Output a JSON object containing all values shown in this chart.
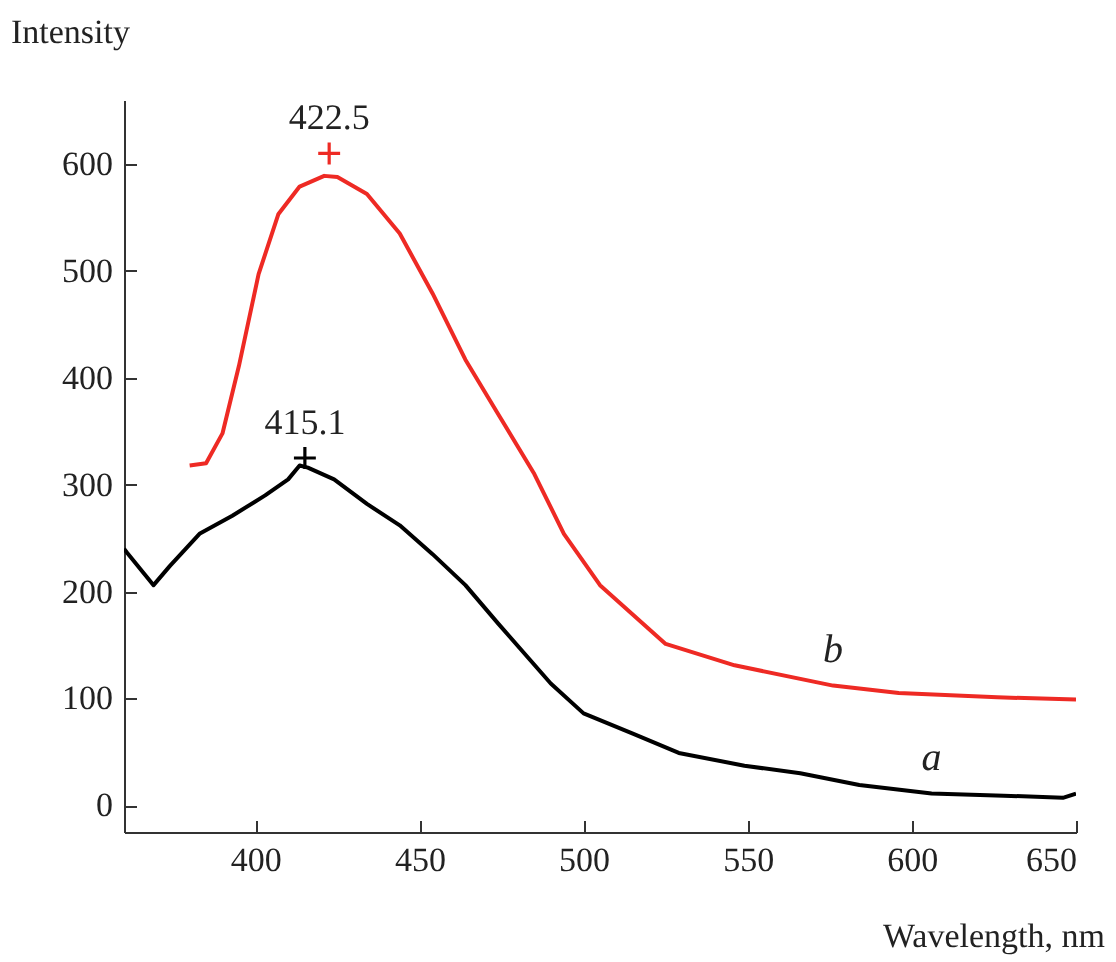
{
  "chart_data": {
    "type": "line",
    "xlabel": "Wavelength, nm",
    "ylabel": "Intensity",
    "xlim": [
      360,
      650
    ],
    "xticks": [
      400,
      450,
      500,
      550,
      600,
      650
    ],
    "ylim": [
      -25,
      660
    ],
    "yticks": [
      0,
      100,
      200,
      300,
      400,
      500,
      600
    ],
    "grid": false,
    "line_style": "solid",
    "series": [
      {
        "name": "a",
        "color": "#000000",
        "x": [
          360,
          361,
          369,
          374,
          383,
          393,
          403,
          410,
          413.5,
          416,
          424,
          434,
          444,
          454,
          464,
          474,
          490,
          500,
          515,
          529,
          549,
          566,
          584,
          606,
          628,
          646,
          650
        ],
        "values": [
          240,
          236,
          206,
          224,
          254,
          271,
          290,
          305,
          318,
          316,
          305,
          282,
          262,
          235,
          206,
          170,
          114,
          86,
          67,
          49,
          37,
          30,
          19,
          11,
          9,
          7,
          11
        ]
      },
      {
        "name": "b",
        "color": "#ee2a24",
        "x": [
          380,
          385,
          390,
          395,
          401,
          407,
          413.5,
          421,
          425,
          434,
          444,
          454,
          464,
          474,
          485,
          494,
          505,
          525,
          546,
          576,
          596,
          626,
          650
        ],
        "values": [
          318,
          320,
          348,
          411,
          497,
          553,
          579,
          589,
          588,
          572,
          535,
          479,
          417,
          366,
          310,
          254,
          206,
          151,
          131,
          112,
          105,
          101,
          99
        ]
      },
      {
        "type": "scatter",
        "marker": "cross",
        "color": "#000000",
        "x": [
          415.1
        ],
        "values": [
          325
        ]
      },
      {
        "type": "scatter",
        "marker": "cross",
        "color": "#ee2a24",
        "x": [
          422.5
        ],
        "values": [
          610
        ]
      }
    ],
    "annotations": [
      {
        "text": "415.1",
        "x": 415.1,
        "y": 325
      },
      {
        "text": "422.5",
        "x": 422.5,
        "y": 610
      }
    ]
  }
}
